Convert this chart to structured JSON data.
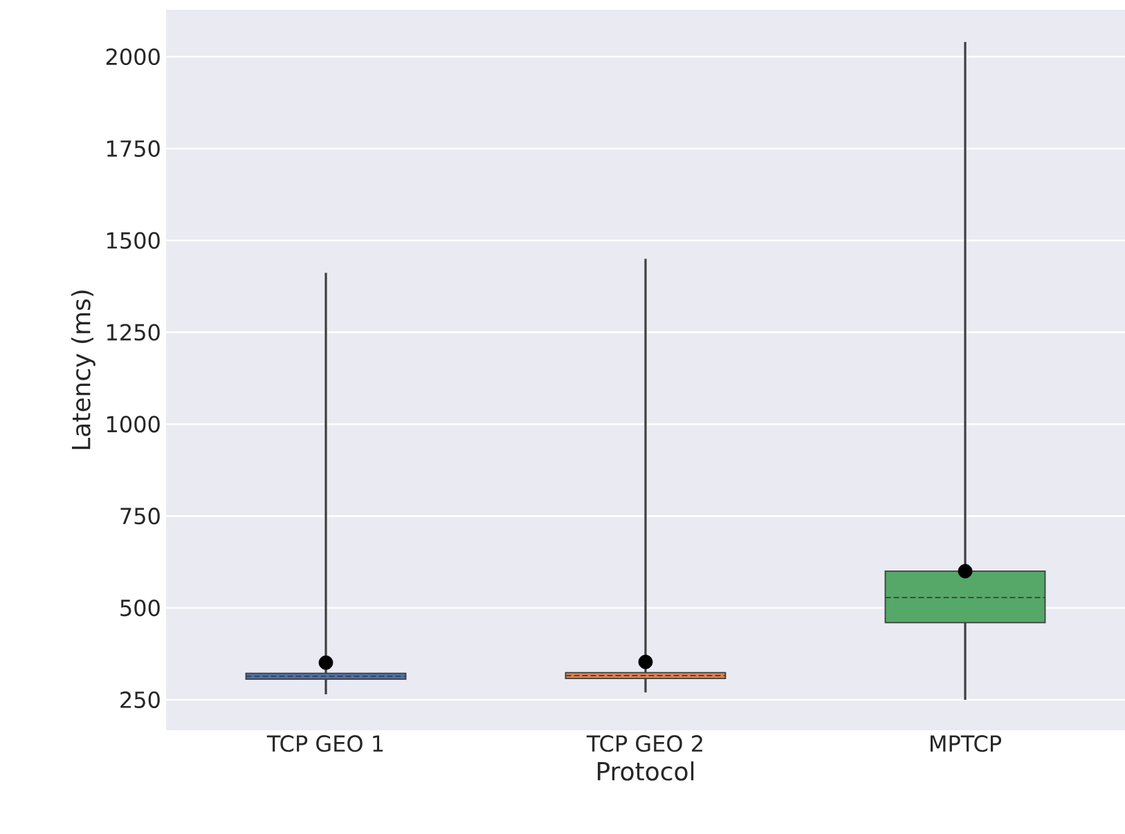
{
  "chart_data": {
    "type": "box",
    "xlabel": "Protocol",
    "ylabel": "Latency (ms)",
    "categories": [
      "TCP GEO 1",
      "TCP GEO 2",
      "MPTCP"
    ],
    "colors": [
      "#4c72b0",
      "#dd8452",
      "#55a868"
    ],
    "boxes": [
      {
        "low": 265,
        "q1": 306,
        "median": 314,
        "q3": 322,
        "high": 1412,
        "mean": 351
      },
      {
        "low": 270,
        "q1": 308,
        "median": 316,
        "q3": 324,
        "high": 1450,
        "mean": 353
      },
      {
        "low": 250,
        "q1": 460,
        "median": 528,
        "q3": 600,
        "high": 2040,
        "mean": 600
      }
    ],
    "ylim": [
      167,
      2128
    ],
    "yticks": [
      250,
      500,
      750,
      1000,
      1250,
      1500,
      1750,
      2000
    ],
    "grid": "y"
  }
}
